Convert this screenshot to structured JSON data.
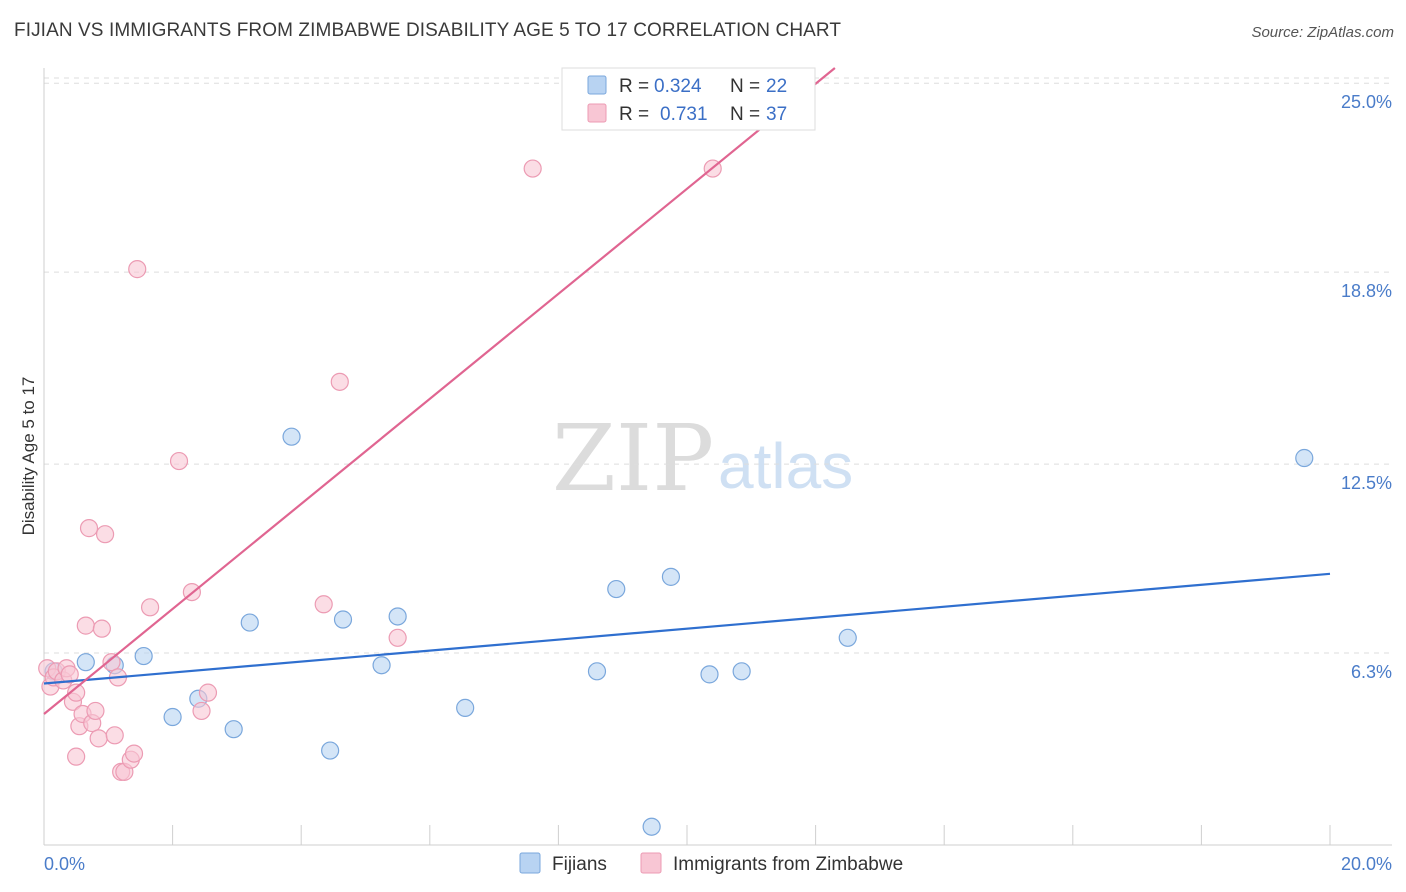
{
  "header": {
    "title": "FIJIAN VS IMMIGRANTS FROM ZIMBABWE DISABILITY AGE 5 TO 17 CORRELATION CHART",
    "source": "Source: ZipAtlas.com"
  },
  "legend_top": {
    "rows": [
      {
        "r_label": "R =",
        "r_value": "0.324",
        "n_label": "N =",
        "n_value": "22"
      },
      {
        "r_label": "R =",
        "r_value": "0.731",
        "n_label": "N =",
        "n_value": "37"
      }
    ]
  },
  "watermark": {
    "zip": "ZIP",
    "atlas": "atlas"
  },
  "colors": {
    "fijians_fill": "#b8d3f2",
    "fijians_stroke": "#7aa7dc",
    "fijians_line": "#2f6fcf",
    "zim_fill": "#f8c6d4",
    "zim_stroke": "#ec9bb3",
    "zim_line": "#e06591",
    "tick_text": "#4a7cc9",
    "grid": "#dddddd"
  },
  "chart_data": {
    "type": "scatter",
    "ylabel": "Disability Age 5 to 17",
    "xlim": [
      0,
      20
    ],
    "ylim": [
      0,
      25.5
    ],
    "y_ticks": [
      {
        "value": 6.3,
        "label": "6.3%"
      },
      {
        "value": 12.5,
        "label": "12.5%"
      },
      {
        "value": 18.8,
        "label": "18.8%"
      },
      {
        "value": 25.0,
        "label": "25.0%"
      }
    ],
    "x_tick_labels": {
      "min": "0.0%",
      "max": "20.0%"
    },
    "grid": "horizontal dashed",
    "legend_position": "top-center",
    "series": [
      {
        "name": "Fijians",
        "color_key": "fijians",
        "points": [
          [
            0.15,
            5.7
          ],
          [
            0.65,
            6.0
          ],
          [
            1.1,
            5.9
          ],
          [
            1.55,
            6.2
          ],
          [
            2.0,
            4.2
          ],
          [
            2.4,
            4.8
          ],
          [
            2.95,
            3.8
          ],
          [
            3.2,
            7.3
          ],
          [
            3.85,
            13.4
          ],
          [
            4.45,
            3.1
          ],
          [
            4.65,
            7.4
          ],
          [
            5.25,
            5.9
          ],
          [
            5.5,
            7.5
          ],
          [
            6.55,
            4.5
          ],
          [
            8.6,
            5.7
          ],
          [
            8.9,
            8.4
          ],
          [
            9.45,
            0.6
          ],
          [
            9.75,
            8.8
          ],
          [
            10.35,
            5.6
          ],
          [
            10.85,
            5.7
          ],
          [
            12.5,
            6.8
          ],
          [
            19.6,
            12.7
          ]
        ],
        "trend": {
          "x": [
            0,
            20
          ],
          "y": [
            5.3,
            8.9
          ]
        }
      },
      {
        "name": "Immigrants from Zimbabwe",
        "color_key": "zim",
        "points": [
          [
            0.05,
            5.8
          ],
          [
            0.1,
            5.2
          ],
          [
            0.15,
            5.5
          ],
          [
            0.2,
            5.7
          ],
          [
            0.3,
            5.4
          ],
          [
            0.35,
            5.8
          ],
          [
            0.4,
            5.6
          ],
          [
            0.45,
            4.7
          ],
          [
            0.5,
            5.0
          ],
          [
            0.5,
            2.9
          ],
          [
            0.55,
            3.9
          ],
          [
            0.6,
            4.3
          ],
          [
            0.65,
            7.2
          ],
          [
            0.7,
            10.4
          ],
          [
            0.75,
            4.0
          ],
          [
            0.8,
            4.4
          ],
          [
            0.85,
            3.5
          ],
          [
            0.9,
            7.1
          ],
          [
            0.95,
            10.2
          ],
          [
            1.05,
            6.0
          ],
          [
            1.1,
            3.6
          ],
          [
            1.15,
            5.5
          ],
          [
            1.2,
            2.4
          ],
          [
            1.25,
            2.4
          ],
          [
            1.35,
            2.8
          ],
          [
            1.4,
            3.0
          ],
          [
            1.45,
            18.9
          ],
          [
            1.65,
            7.8
          ],
          [
            2.1,
            12.6
          ],
          [
            2.3,
            8.3
          ],
          [
            2.45,
            4.4
          ],
          [
            2.55,
            5.0
          ],
          [
            4.35,
            7.9
          ],
          [
            4.6,
            15.2
          ],
          [
            5.5,
            6.8
          ],
          [
            7.6,
            22.2
          ],
          [
            10.4,
            22.2
          ]
        ],
        "trend": {
          "x": [
            0,
            12.3
          ],
          "y": [
            4.3,
            25.5
          ]
        }
      }
    ]
  },
  "bottom_legend": {
    "items": [
      {
        "label": "Fijians",
        "color_key": "fijians"
      },
      {
        "label": "Immigrants from Zimbabwe",
        "color_key": "zim"
      }
    ]
  }
}
